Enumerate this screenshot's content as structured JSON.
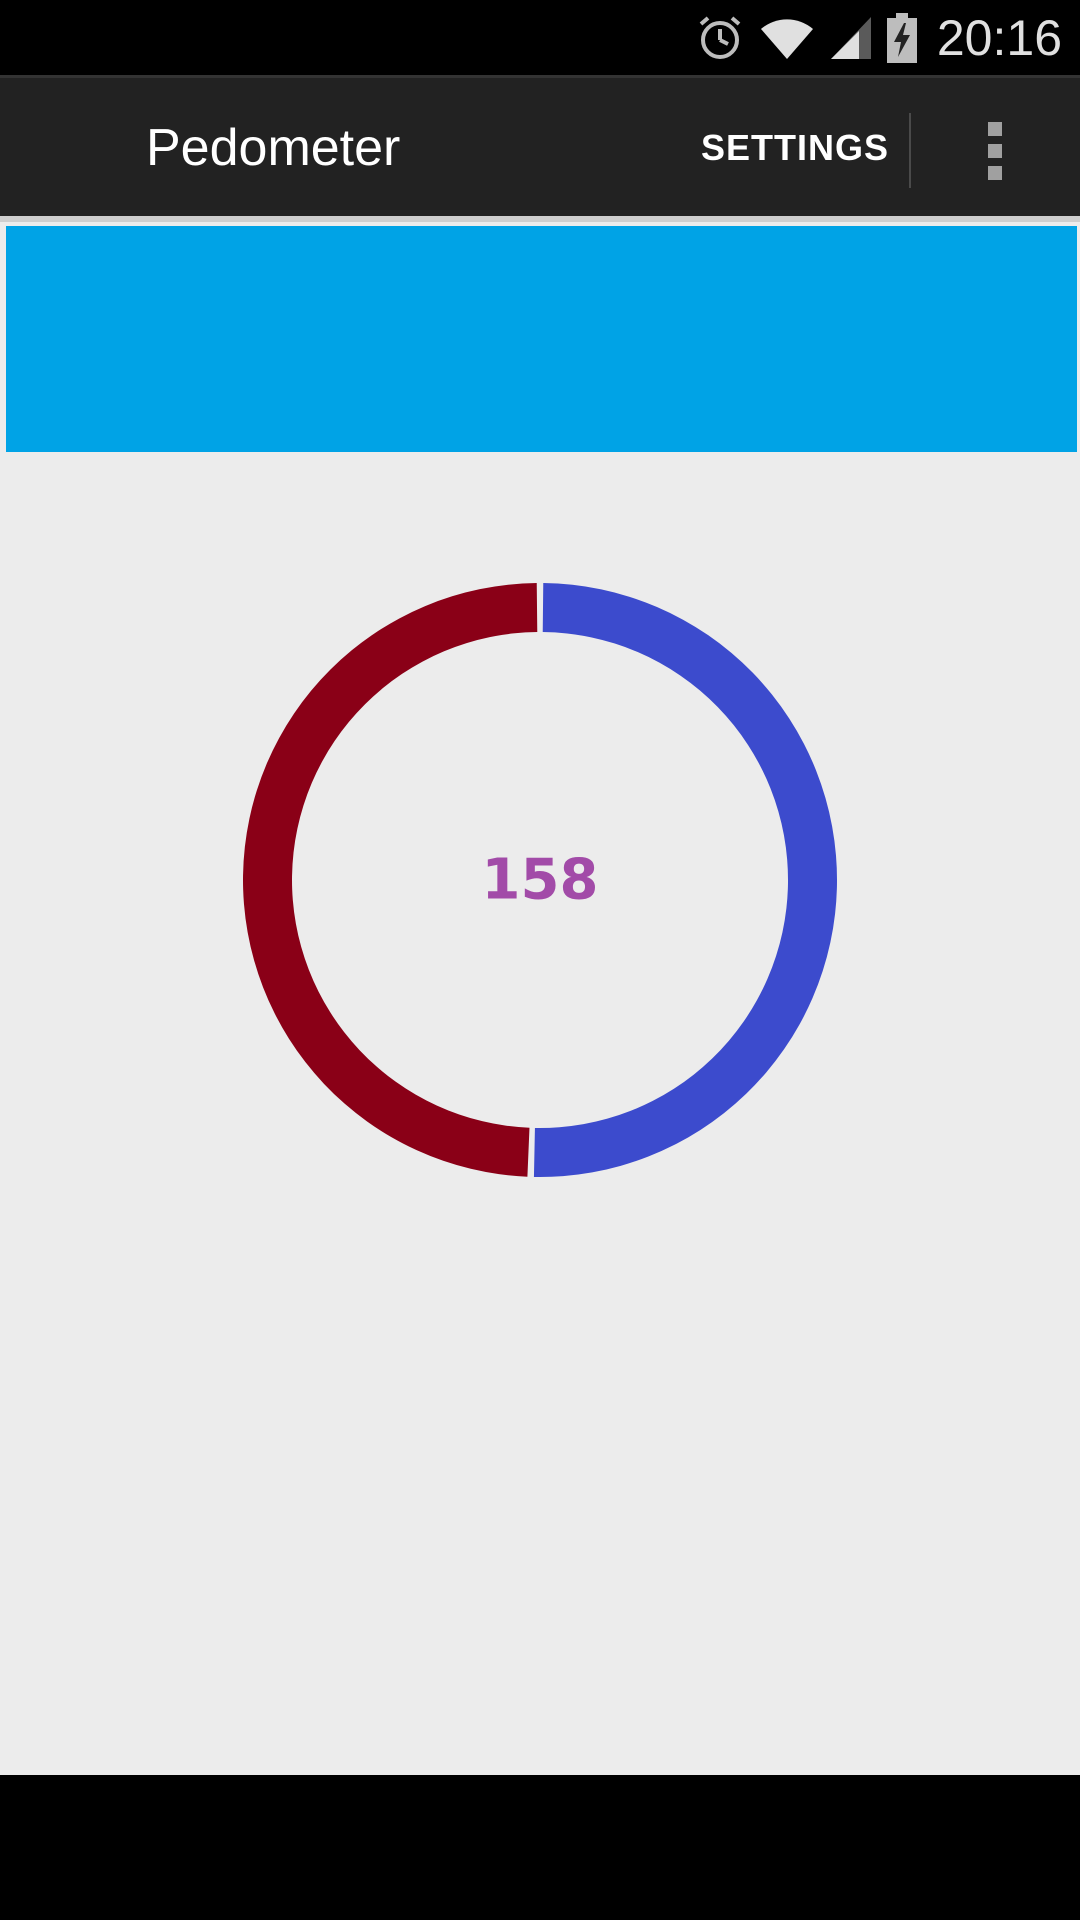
{
  "status_bar": {
    "time": "20:16",
    "icons": [
      "alarm-icon",
      "wifi-icon",
      "signal-icon",
      "battery-charging-icon"
    ]
  },
  "action_bar": {
    "title": "Pedometer",
    "settings_label": "SETTINGS",
    "overflow_icon": "overflow-menu-icon"
  },
  "banner": {
    "color": "#00a3e6"
  },
  "chart_data": {
    "type": "pie",
    "center_label": "158",
    "center_label_color": "#a24ba8",
    "slices": [
      {
        "value": 50.5,
        "color": "#3c4bcd"
      },
      {
        "value": 49.5,
        "color": "#8a0017"
      }
    ]
  }
}
